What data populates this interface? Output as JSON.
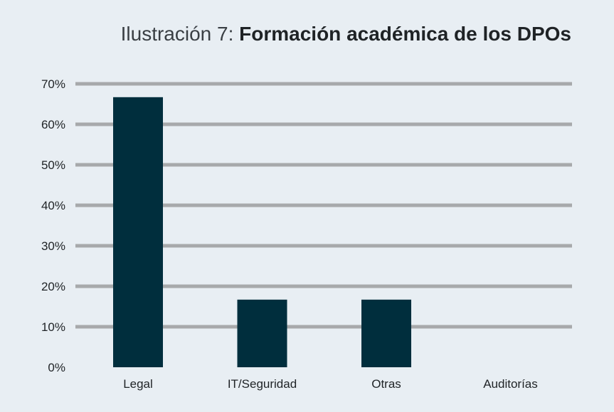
{
  "title": {
    "prefix": "Ilustración 7: ",
    "main": "Formación académica de los DPOs"
  },
  "colors": {
    "background": "#e8eef3",
    "bar": "#002e3d",
    "grid": "#a7a9ab"
  },
  "chart_data": {
    "type": "bar",
    "categories": [
      "Legal",
      "IT/Seguridad",
      "Otras",
      "Auditorías"
    ],
    "values": [
      66.7,
      16.7,
      16.7,
      0
    ],
    "ylim": [
      0,
      70
    ],
    "yticks": [
      "0%",
      "10%",
      "20%",
      "30%",
      "40%",
      "50%",
      "60%",
      "70%"
    ],
    "grid": true,
    "legend": "none",
    "xlabel": "",
    "ylabel": ""
  }
}
